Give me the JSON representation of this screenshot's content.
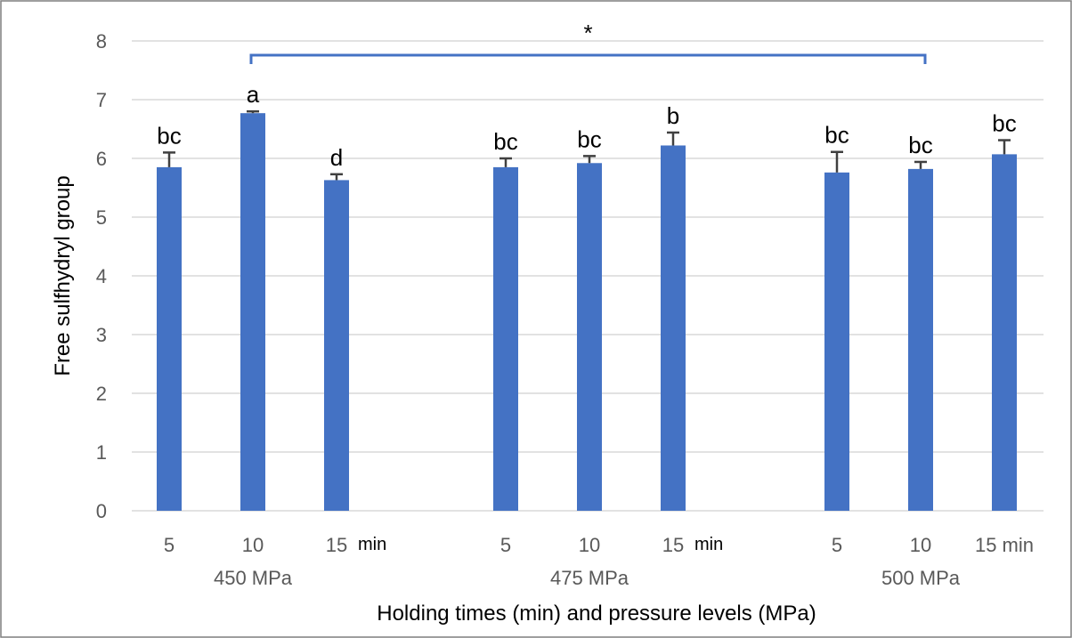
{
  "chart_data": {
    "type": "bar",
    "ylabel": "Free sulfhydryl group",
    "xlabel": "Holding times (min) and pressure levels (MPa)",
    "ylim": [
      0,
      8
    ],
    "yticks": [
      "0",
      "1",
      "2",
      "3",
      "4",
      "5",
      "6",
      "7",
      "8"
    ],
    "grid": true,
    "bar_color": "#4472c4",
    "bracket_color": "#4472c4",
    "groups": [
      {
        "label": "450 MPa",
        "categories": [
          "5",
          "10",
          "15"
        ],
        "values": [
          5.85,
          6.77,
          5.63
        ],
        "errors": [
          0.25,
          0.03,
          0.1
        ],
        "letters": [
          "bc",
          "a",
          "d"
        ],
        "unit_label": "min"
      },
      {
        "label": "475 MPa",
        "categories": [
          "5",
          "10",
          "15"
        ],
        "values": [
          5.85,
          5.92,
          6.22
        ],
        "errors": [
          0.15,
          0.12,
          0.22
        ],
        "letters": [
          "bc",
          "bc",
          "b"
        ],
        "unit_label": "min"
      },
      {
        "label": "500 MPa",
        "categories": [
          "5",
          "10",
          "15 min"
        ],
        "values": [
          5.76,
          5.82,
          6.07
        ],
        "errors": [
          0.35,
          0.12,
          0.24
        ],
        "letters": [
          "bc",
          "bc",
          "bc"
        ],
        "unit_label": ""
      }
    ],
    "significance": {
      "symbol": "*"
    }
  }
}
